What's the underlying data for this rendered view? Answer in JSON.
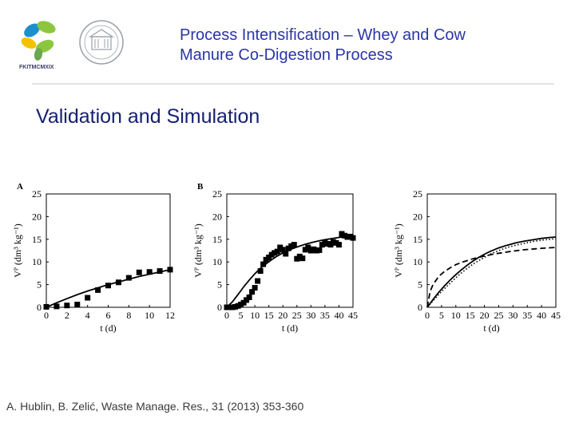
{
  "header": {
    "title_line1": "Process Intensification – Whey and Cow",
    "title_line2": "Manure Co-Digestion Process",
    "logo_left_text": "FKITMCMXIX"
  },
  "slide": {
    "heading": "Validation and Simulation"
  },
  "citation": "A. Hublin, B. Zelić, Waste Manage. Res., 31 (2013) 353-360",
  "chart_data": [
    {
      "type": "scatter",
      "panel_label": "A",
      "xlabel": "t (d)",
      "ylabel": "Vᴾ (dm³ kg⁻¹)",
      "xlim": [
        0,
        12
      ],
      "ylim": [
        0,
        25
      ],
      "x_ticks": [
        0,
        2,
        4,
        6,
        8,
        10,
        12
      ],
      "y_ticks": [
        0,
        5,
        10,
        15,
        20,
        25
      ],
      "series": [
        {
          "kind": "markers",
          "points": [
            [
              0,
              0.1
            ],
            [
              1,
              0.2
            ],
            [
              2,
              0.4
            ],
            [
              3,
              0.6
            ],
            [
              4,
              2.1
            ],
            [
              5,
              3.8
            ],
            [
              6,
              4.8
            ],
            [
              7,
              5.5
            ],
            [
              8,
              6.5
            ],
            [
              9,
              7.7
            ],
            [
              10,
              7.8
            ],
            [
              11,
              8.0
            ],
            [
              12,
              8.3
            ]
          ]
        },
        {
          "kind": "line",
          "style": "solid",
          "points": [
            [
              0,
              0
            ],
            [
              1,
              1.0
            ],
            [
              2,
              1.9
            ],
            [
              3,
              2.8
            ],
            [
              4,
              3.6
            ],
            [
              5,
              4.3
            ],
            [
              6,
              5.0
            ],
            [
              7,
              5.6
            ],
            [
              8,
              6.2
            ],
            [
              9,
              6.8
            ],
            [
              10,
              7.3
            ],
            [
              11,
              7.8
            ],
            [
              12,
              8.3
            ]
          ]
        }
      ]
    },
    {
      "type": "scatter",
      "panel_label": "B",
      "xlabel": "t (d)",
      "ylabel": "Vᴾ (dm³ kg⁻¹)",
      "xlim": [
        0,
        45
      ],
      "ylim": [
        0,
        25
      ],
      "x_ticks": [
        0,
        5,
        10,
        15,
        20,
        25,
        30,
        35,
        40,
        45
      ],
      "y_ticks": [
        0,
        5,
        10,
        15,
        20,
        25
      ],
      "series": [
        {
          "kind": "markers",
          "points": [
            [
              0,
              0
            ],
            [
              1,
              0
            ],
            [
              2,
              0
            ],
            [
              3,
              0.1
            ],
            [
              4,
              0.3
            ],
            [
              5,
              0.6
            ],
            [
              6,
              1.0
            ],
            [
              7,
              1.6
            ],
            [
              8,
              2.2
            ],
            [
              9,
              3.4
            ],
            [
              10,
              4.3
            ],
            [
              11,
              5.8
            ],
            [
              12,
              8.0
            ],
            [
              13,
              9.5
            ],
            [
              14,
              10.5
            ],
            [
              15,
              11.0
            ],
            [
              16,
              11.6
            ],
            [
              17,
              12.0
            ],
            [
              18,
              12.3
            ],
            [
              19,
              13.2
            ],
            [
              20,
              12.7
            ],
            [
              21,
              11.8
            ],
            [
              22,
              13.0
            ],
            [
              23,
              13.5
            ],
            [
              24,
              13.8
            ],
            [
              25,
              10.7
            ],
            [
              26,
              11.2
            ],
            [
              27,
              10.8
            ],
            [
              28,
              12.7
            ],
            [
              29,
              13.2
            ],
            [
              30,
              12.5
            ],
            [
              31,
              12.8
            ],
            [
              32,
              12.5
            ],
            [
              33,
              12.6
            ],
            [
              34,
              13.8
            ],
            [
              35,
              14.2
            ],
            [
              36,
              14.0
            ],
            [
              37,
              13.8
            ],
            [
              38,
              14.4
            ],
            [
              39,
              14.2
            ],
            [
              40,
              13.8
            ],
            [
              41,
              16.2
            ],
            [
              42,
              15.8
            ],
            [
              43,
              15.5
            ],
            [
              44,
              15.6
            ],
            [
              45,
              15.3
            ]
          ]
        },
        {
          "kind": "line",
          "style": "solid",
          "points": [
            [
              0,
              0
            ],
            [
              2,
              1.2
            ],
            [
              4,
              2.8
            ],
            [
              6,
              4.5
            ],
            [
              8,
              6.0
            ],
            [
              10,
              7.4
            ],
            [
              12,
              8.6
            ],
            [
              14,
              9.6
            ],
            [
              16,
              10.5
            ],
            [
              18,
              11.3
            ],
            [
              20,
              12.0
            ],
            [
              22,
              12.6
            ],
            [
              25,
              13.3
            ],
            [
              28,
              13.9
            ],
            [
              31,
              14.4
            ],
            [
              34,
              14.8
            ],
            [
              37,
              15.1
            ],
            [
              40,
              15.4
            ],
            [
              43,
              15.6
            ],
            [
              45,
              15.7
            ]
          ]
        }
      ]
    },
    {
      "type": "line",
      "panel_label": "",
      "xlabel": "t (d)",
      "ylabel": "Vᴾ (dm³ kg⁻¹)",
      "xlim": [
        0,
        45
      ],
      "ylim": [
        0,
        25
      ],
      "x_ticks": [
        0,
        5,
        10,
        15,
        20,
        25,
        30,
        35,
        40,
        45
      ],
      "y_ticks": [
        0,
        5,
        10,
        15,
        20,
        25
      ],
      "series": [
        {
          "kind": "line",
          "style": "solid",
          "points": [
            [
              0,
              0
            ],
            [
              2,
              1.7
            ],
            [
              4,
              3.3
            ],
            [
              6,
              4.7
            ],
            [
              8,
              6.0
            ],
            [
              10,
              7.2
            ],
            [
              12,
              8.3
            ],
            [
              14,
              9.3
            ],
            [
              16,
              10.2
            ],
            [
              18,
              11.0
            ],
            [
              20,
              11.7
            ],
            [
              22,
              12.3
            ],
            [
              25,
              13.1
            ],
            [
              28,
              13.7
            ],
            [
              31,
              14.2
            ],
            [
              34,
              14.6
            ],
            [
              37,
              14.9
            ],
            [
              40,
              15.2
            ],
            [
              43,
              15.4
            ],
            [
              45,
              15.5
            ]
          ]
        },
        {
          "kind": "line",
          "style": "dashed",
          "points": [
            [
              0,
              0
            ],
            [
              1,
              3.5
            ],
            [
              2,
              5.0
            ],
            [
              4,
              6.8
            ],
            [
              6,
              7.9
            ],
            [
              8,
              8.7
            ],
            [
              10,
              9.4
            ],
            [
              12,
              9.9
            ],
            [
              14,
              10.3
            ],
            [
              16,
              10.7
            ],
            [
              18,
              11.0
            ],
            [
              20,
              11.3
            ],
            [
              23,
              11.7
            ],
            [
              26,
              12.0
            ],
            [
              30,
              12.4
            ],
            [
              34,
              12.7
            ],
            [
              38,
              12.9
            ],
            [
              42,
              13.1
            ],
            [
              45,
              13.2
            ]
          ]
        },
        {
          "kind": "line",
          "style": "dotted",
          "points": [
            [
              0,
              0
            ],
            [
              2,
              1.4
            ],
            [
              4,
              2.8
            ],
            [
              6,
              4.1
            ],
            [
              8,
              5.3
            ],
            [
              10,
              6.5
            ],
            [
              12,
              7.6
            ],
            [
              14,
              8.6
            ],
            [
              16,
              9.5
            ],
            [
              18,
              10.3
            ],
            [
              20,
              11.0
            ],
            [
              22,
              11.7
            ],
            [
              25,
              12.5
            ],
            [
              28,
              13.2
            ],
            [
              31,
              13.7
            ],
            [
              34,
              14.1
            ],
            [
              37,
              14.5
            ],
            [
              40,
              14.8
            ],
            [
              43,
              15.0
            ],
            [
              45,
              15.1
            ]
          ]
        }
      ]
    }
  ]
}
